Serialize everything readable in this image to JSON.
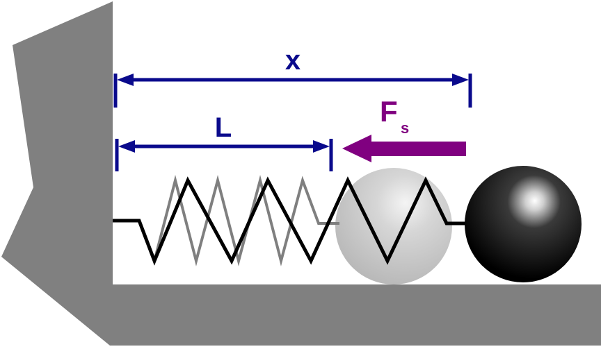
{
  "diagram": {
    "labels": {
      "x": "x",
      "L": "L",
      "force_main": "F",
      "force_sub": "s"
    },
    "colors": {
      "wall": "#808080",
      "dimension": "#0a0a8c",
      "force": "#800080",
      "spring_compressed": "#000000",
      "spring_rest": "#7f7f7f",
      "ball_rest": "#c8c8c8",
      "ball_displaced": "#000000"
    }
  }
}
